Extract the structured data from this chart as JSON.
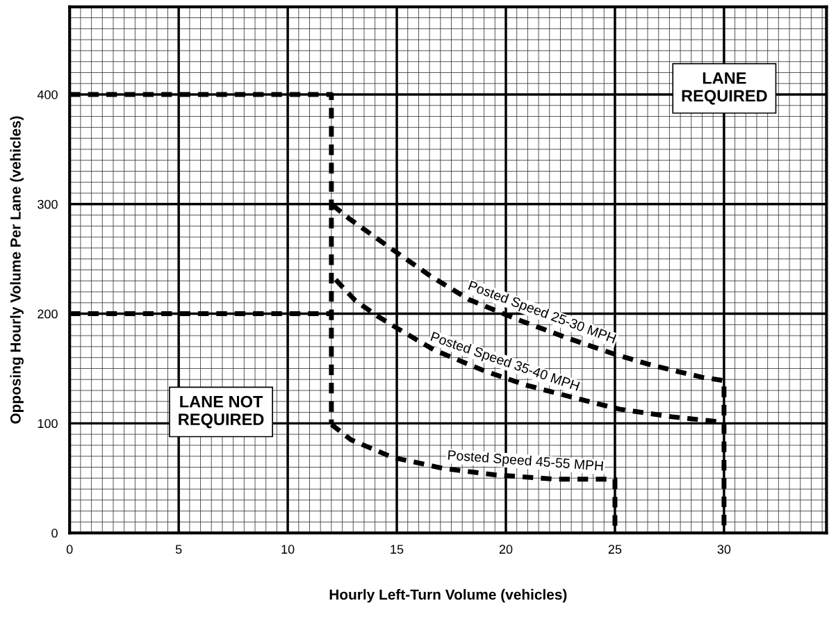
{
  "chart_data": {
    "type": "line",
    "xlabel": "Hourly Left-Turn Volume (vehicles)",
    "ylabel": "Opposing Hourly Volume Per Lane (vehicles)",
    "xlim": [
      0,
      34.7
    ],
    "ylim": [
      0,
      480
    ],
    "xticks": [
      0,
      5,
      10,
      15,
      20,
      25,
      30
    ],
    "yticks": [
      0,
      100,
      200,
      300,
      400
    ],
    "grid": true,
    "line_style": "dashed",
    "marker": "none",
    "legend": false,
    "annotations": [
      "LANE\nREQUIRED",
      "LANE NOT\nREQUIRED"
    ],
    "series": [
      {
        "name": null,
        "color": "#000000",
        "x": [
          0,
          12,
          12
        ],
        "values": [
          400,
          400,
          100
        ]
      },
      {
        "name": null,
        "color": "#000000",
        "x": [
          0,
          12
        ],
        "values": [
          200,
          200
        ]
      },
      {
        "name": "Posted Speed 25-30 MPH",
        "color": "#000000",
        "x": [
          12.06,
          12.8,
          14.7,
          16.5,
          18.3,
          20.5,
          22.8,
          25,
          26.7,
          29.0,
          30,
          30
        ],
        "values": [
          299,
          287,
          260,
          235,
          213,
          195,
          178,
          163,
          153,
          142,
          139,
          0
        ]
      },
      {
        "name": "Posted Speed 35-40 MPH",
        "color": "#000000",
        "x": [
          12.2,
          13.1,
          14.1,
          15,
          16.7,
          19,
          20.9,
          23.0,
          25.2,
          27.6,
          30
        ],
        "values": [
          231,
          212,
          198,
          187,
          167,
          148,
          135,
          124,
          113,
          106,
          101
        ]
      },
      {
        "name": "Posted Speed 45-55 MPH",
        "color": "#000000",
        "x": [
          12,
          12.9,
          14.8,
          17.1,
          19.5,
          22.3,
          25,
          25
        ],
        "values": [
          99,
          85,
          69,
          59,
          53,
          49,
          49,
          0
        ]
      }
    ]
  }
}
